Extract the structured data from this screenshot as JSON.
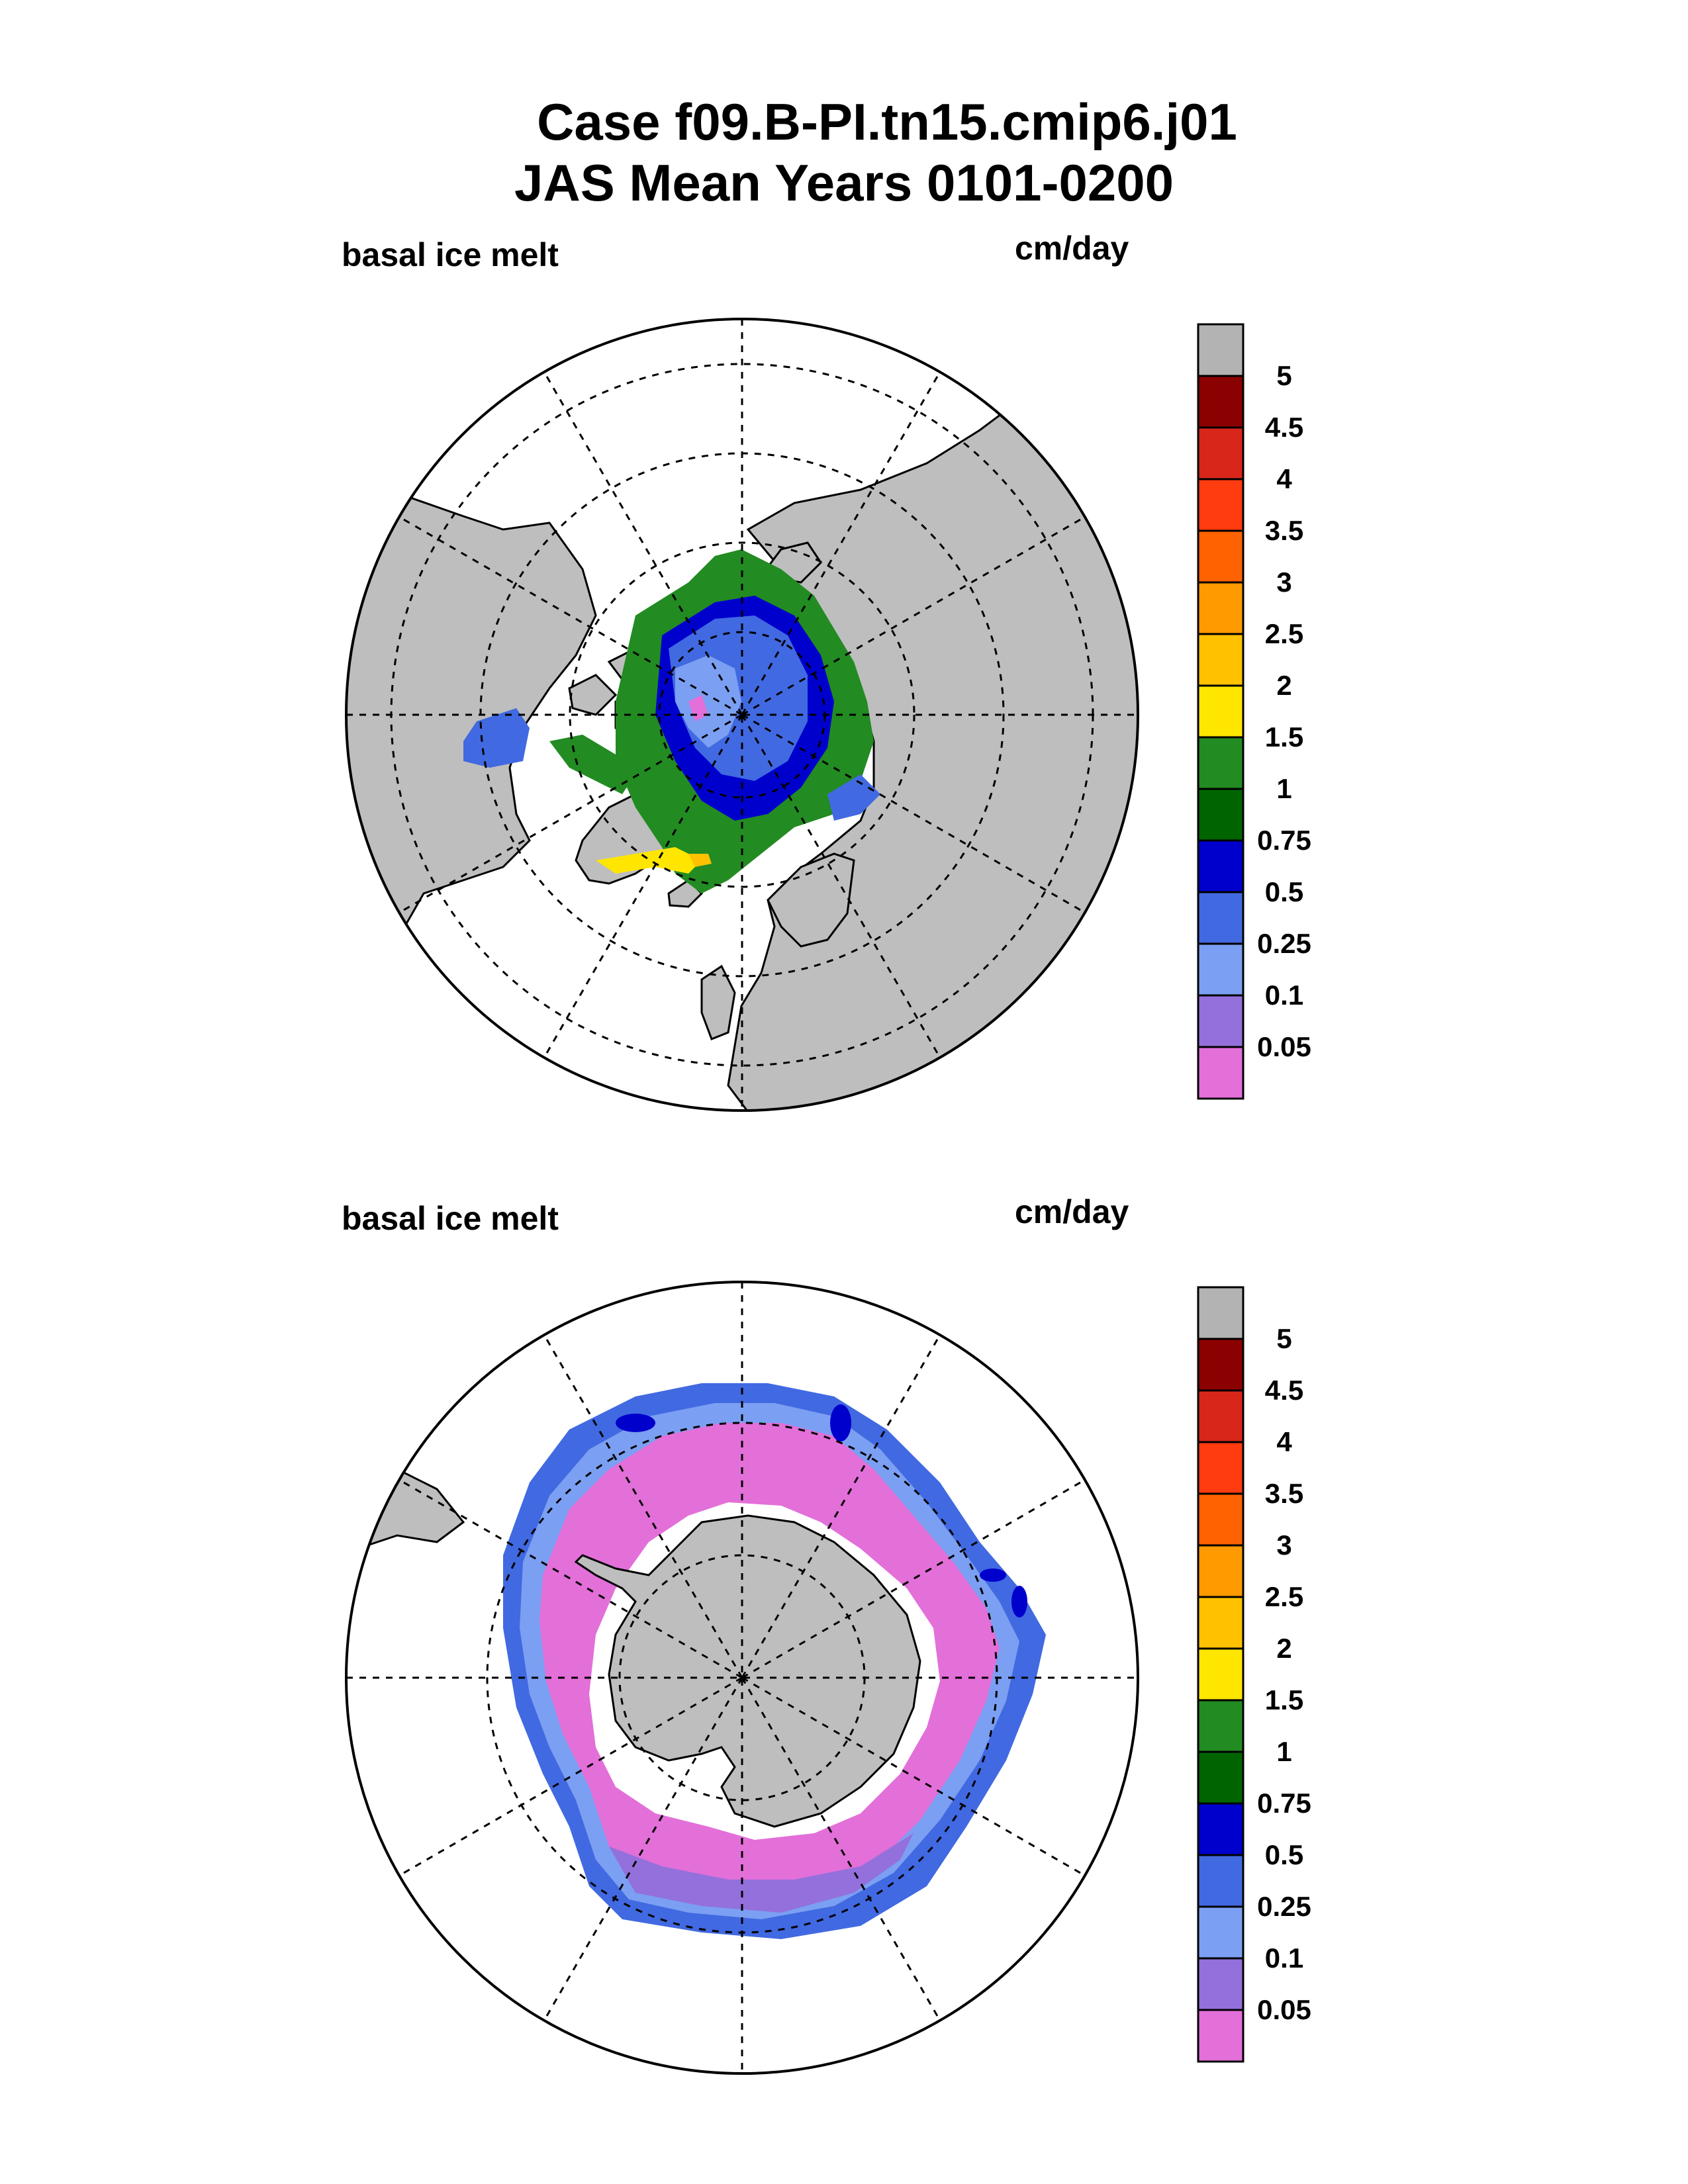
{
  "title": {
    "line1": "Case f09.B-PI.tn15.cmip6.j01",
    "line2": "JAS Mean   Years 0101-0200"
  },
  "panels": [
    {
      "hemisphere": "north",
      "left_label": "basal ice melt",
      "right_label": "cm/day"
    },
    {
      "hemisphere": "south",
      "left_label": "basal ice melt",
      "right_label": "cm/day"
    }
  ],
  "colorbar": {
    "labels": [
      "5",
      "4.5",
      "4",
      "3.5",
      "3",
      "2.5",
      "2",
      "1.5",
      "1",
      "0.75",
      "0.5",
      "0.25",
      "0.1",
      "0.05"
    ],
    "colors": [
      "#b3b3b3",
      "#8b0000",
      "#d9261a",
      "#ff3b10",
      "#ff6200",
      "#ff9a00",
      "#ffc100",
      "#ffe600",
      "#228b22",
      "#006400",
      "#0000cd",
      "#4169e1",
      "#7b9ff2",
      "#9370db",
      "#e36fd9"
    ]
  },
  "map_colors": {
    "land": "#bebebe",
    "ocean": "#ffffff"
  }
}
